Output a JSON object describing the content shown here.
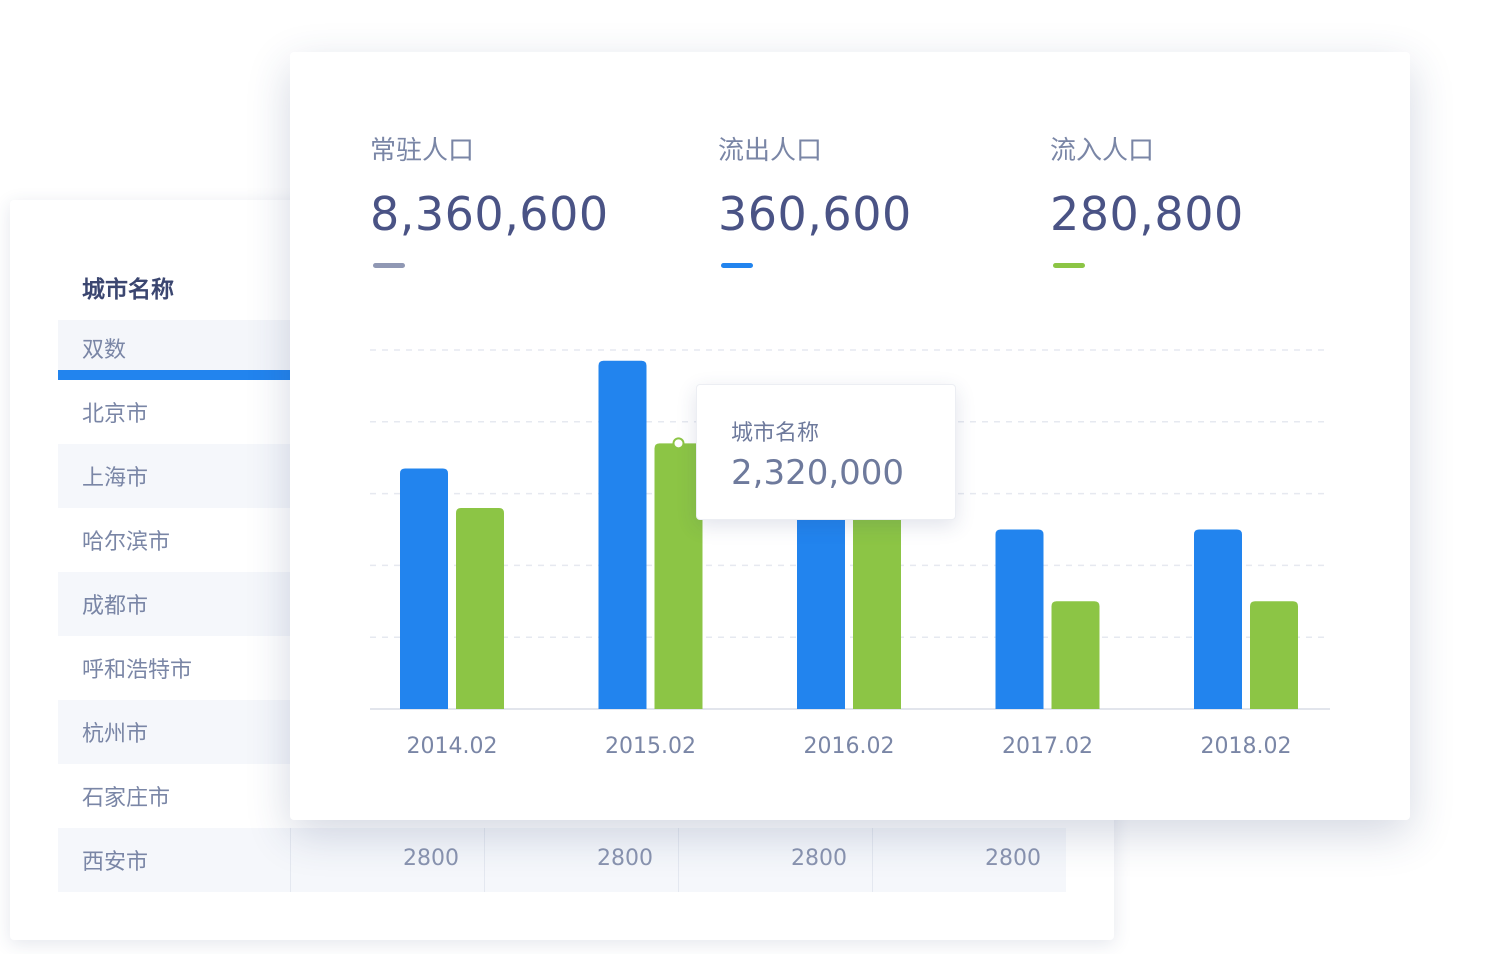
{
  "table": {
    "header": "城市名称",
    "selected_row": "双数",
    "cities": [
      "北京市",
      "上海市",
      "哈尔滨市",
      "成都市",
      "呼和浩特市",
      "杭州市",
      "石家庄市",
      "西安市"
    ],
    "last_row_values": [
      "2800",
      "2800",
      "2800",
      "2800"
    ]
  },
  "stats": [
    {
      "label": "常驻人口",
      "value": "8,360,600",
      "color": "#9098b4"
    },
    {
      "label": "流出人口",
      "value": "360,600",
      "color": "#2284ee"
    },
    {
      "label": "流入人口",
      "value": "280,800",
      "color": "#8cc545"
    }
  ],
  "tooltip": {
    "label": "城市名称",
    "value": "2,320,000"
  },
  "colors": {
    "series_a": "#2284ee",
    "series_b": "#8cc545",
    "grid": "#e6e9f0",
    "axis": "#e2e5ec"
  },
  "chart_data": {
    "type": "bar",
    "title": "",
    "xlabel": "",
    "ylabel": "",
    "categories": [
      "2014.02",
      "2015.02",
      "2016.02",
      "2017.02",
      "2018.02"
    ],
    "series": [
      {
        "values": [
          3.35,
          4.85,
          2.7,
          2.5,
          2.5
        ]
      },
      {
        "values": [
          2.8,
          3.7,
          2.7,
          1.5,
          1.5
        ]
      }
    ],
    "ylim": [
      0,
      5
    ],
    "grid": true,
    "gridlines": 5
  }
}
